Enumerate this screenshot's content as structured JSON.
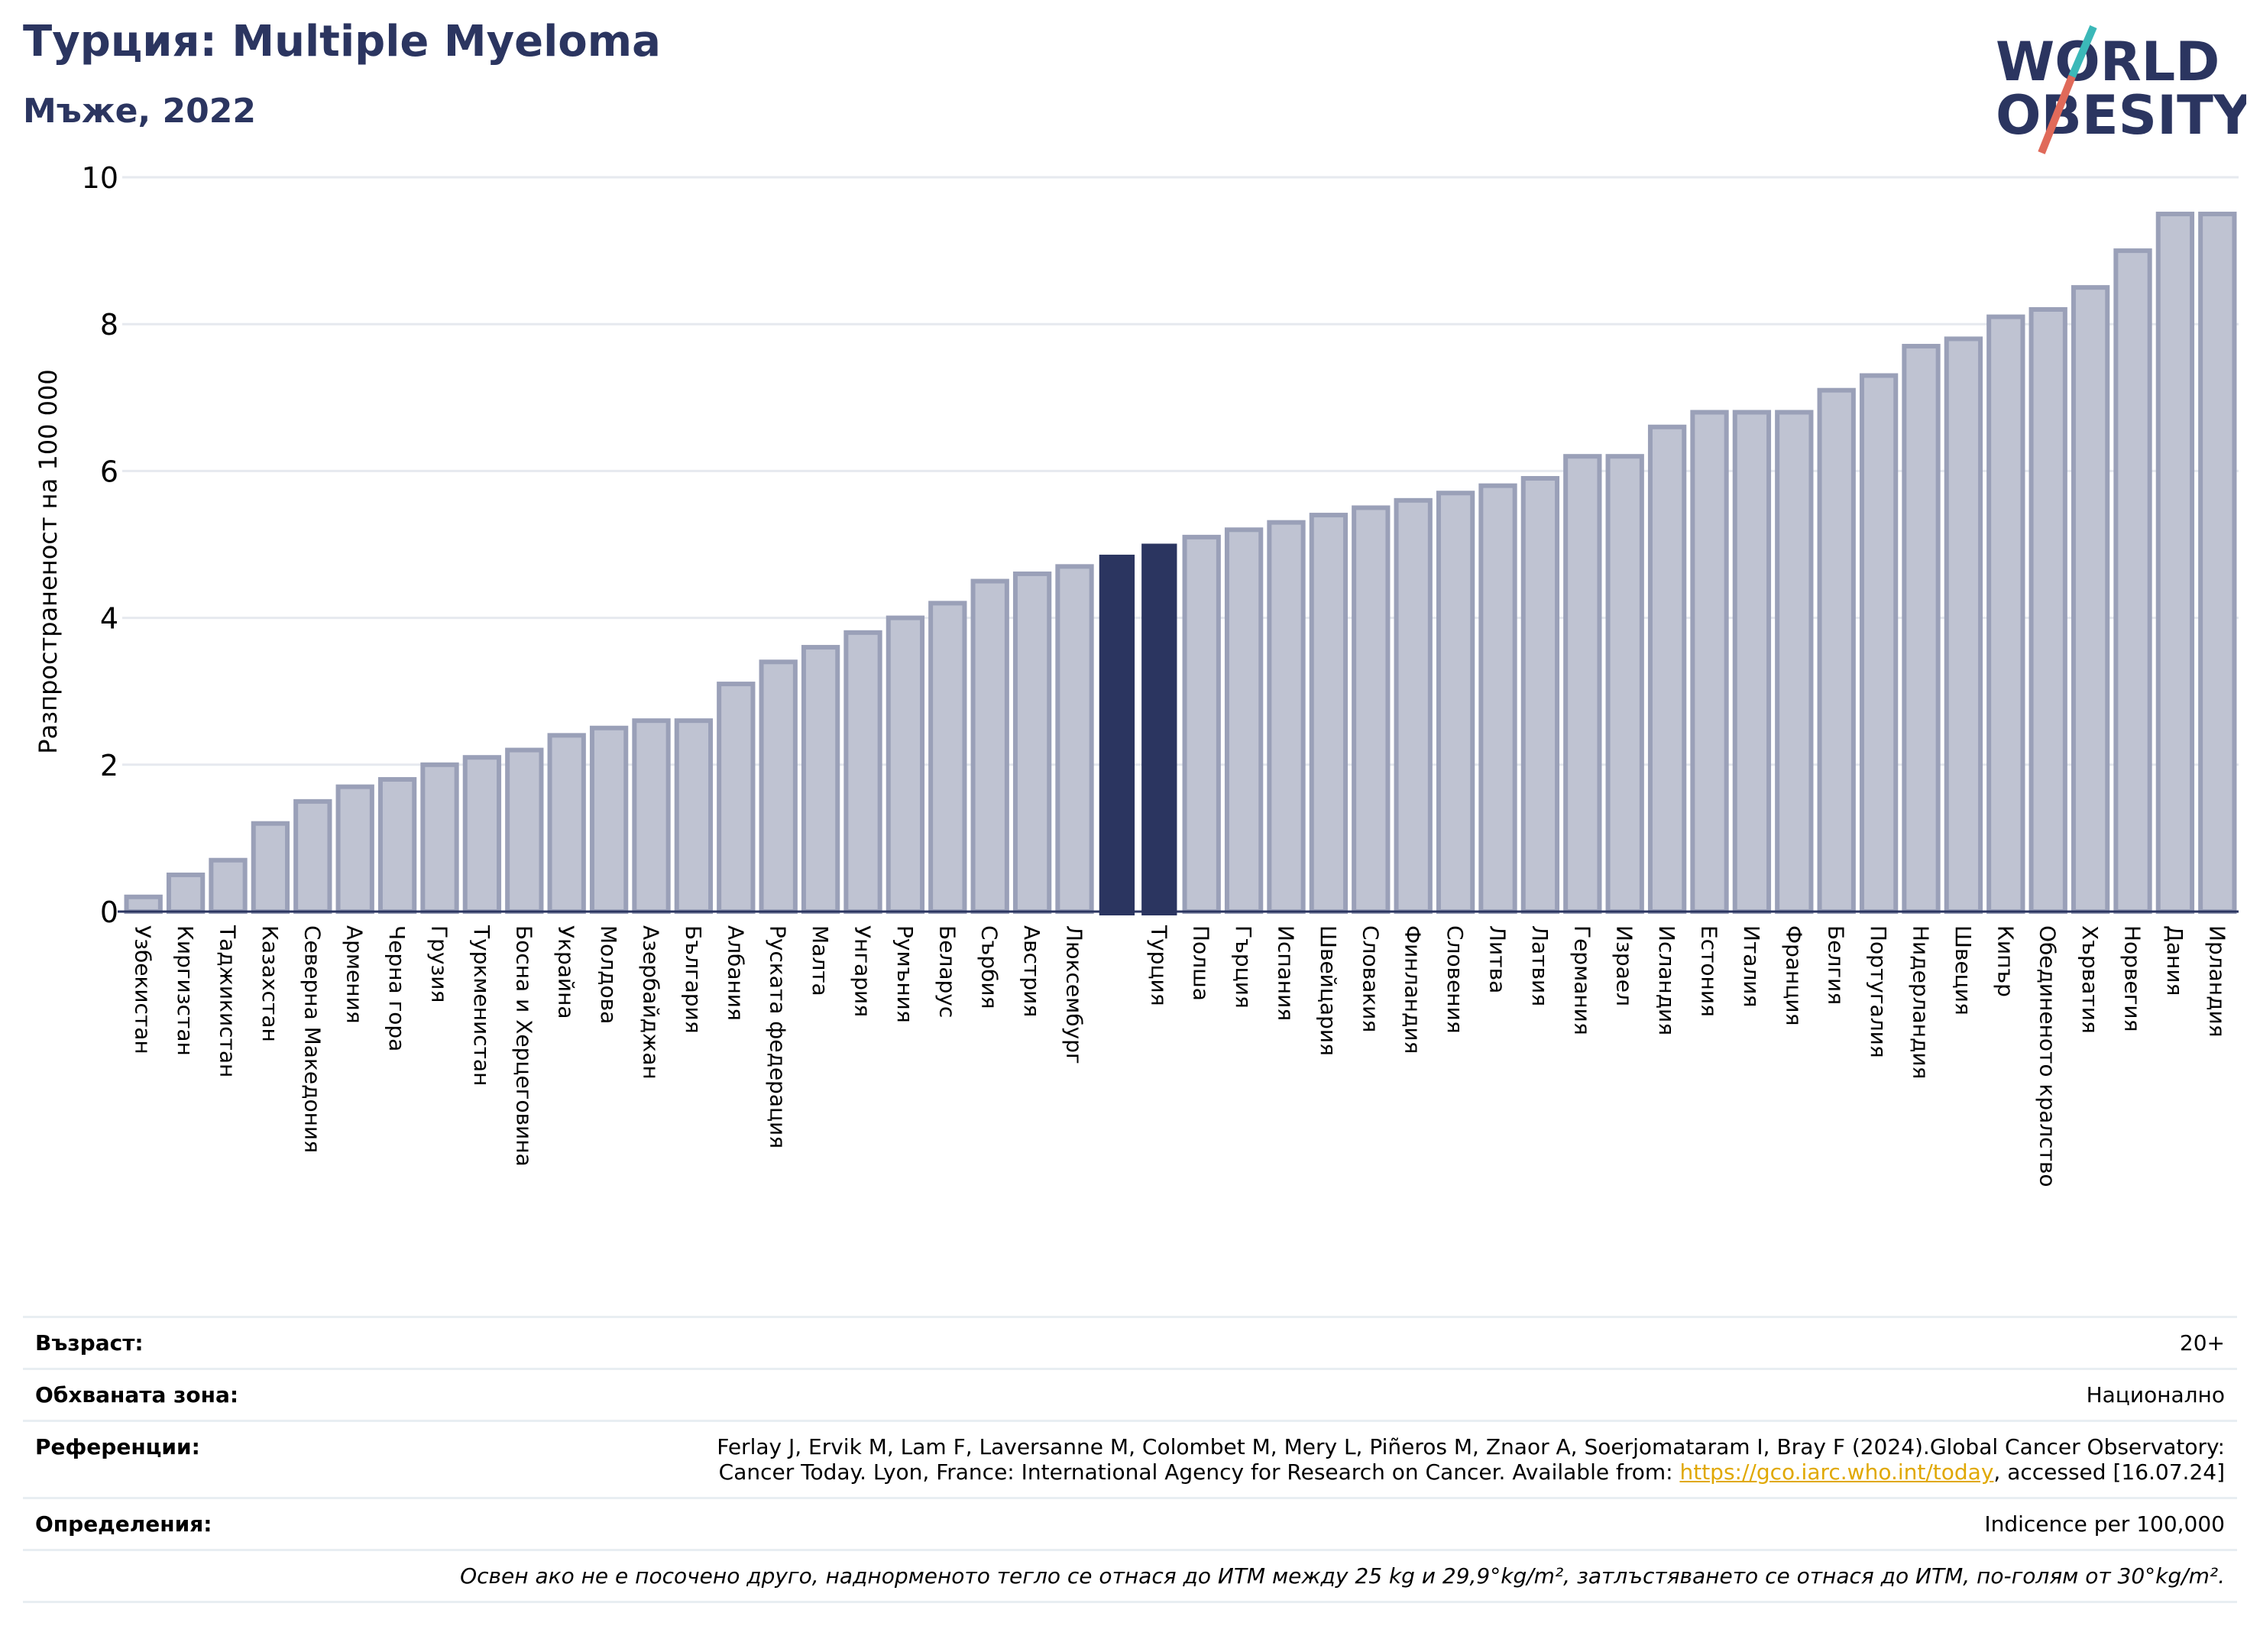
{
  "header": {
    "title": "Турция: Multiple Myeloma",
    "subtitle": "Мъже, 2022"
  },
  "logo": {
    "line1": "WORLD",
    "line2": "OBESITY"
  },
  "colors": {
    "highlight": "#2b3560",
    "bar": "#bfc3d2",
    "bar_border": "#9aa0b8",
    "title": "#2b3560",
    "link": "#e0a800"
  },
  "chart_data": {
    "type": "bar",
    "ylabel": "Разпространеност  на 100 000",
    "ylim": [
      0,
      10
    ],
    "yticks": [
      0,
      2,
      4,
      6,
      8,
      10
    ],
    "grid": true,
    "categories": [
      "Узбекистан",
      "Киргизстан",
      "Таджикистан",
      "Казахстан",
      "Северна Македония",
      "Армения",
      "Черна гора",
      "Грузия",
      "Туркменистан",
      "Босна и Херцеговина",
      "Украйна",
      "Молдова",
      "Азербайджан",
      "България",
      "Албания",
      "Руската федерация",
      "Малта",
      "Унгария",
      "Румъния",
      "Беларус",
      "Сърбия",
      "Австрия",
      "Люксембург",
      "",
      "Турция",
      "Полша",
      "Гърция",
      "Испания",
      "Швейцария",
      "Словакия",
      "Финландия",
      "Словения",
      "Литва",
      "Латвия",
      "Германия",
      "Израел",
      "Исландия",
      "Естония",
      "Италия",
      "Франция",
      "Белгия",
      "Португалия",
      "Нидерландия",
      "Швеция",
      "Кипър",
      "Обединеното кралство",
      "Хърватия",
      "Норвегия",
      "Дания",
      "Ирландия"
    ],
    "values": [
      0.2,
      0.5,
      0.7,
      1.2,
      1.5,
      1.7,
      1.8,
      2.0,
      2.1,
      2.2,
      2.4,
      2.5,
      2.6,
      2.6,
      3.1,
      3.4,
      3.6,
      3.8,
      4.0,
      4.2,
      4.5,
      4.6,
      4.7,
      4.85,
      5.0,
      5.1,
      5.2,
      5.3,
      5.4,
      5.5,
      5.6,
      5.7,
      5.8,
      5.9,
      6.2,
      6.2,
      6.6,
      6.8,
      6.8,
      6.8,
      7.1,
      7.3,
      7.7,
      7.8,
      8.1,
      8.2,
      8.5,
      9.0,
      9.5,
      9.5
    ],
    "highlighted": [
      23,
      24
    ]
  },
  "meta": {
    "age_label": "Възраст:",
    "age_value": "20+",
    "coverage_label": "Обхваната зона:",
    "coverage_value": "Национално",
    "refs_label": "Референции:",
    "refs_line1": "Ferlay J, Ervik M, Lam F, Laversanne M, Colombet M, Mery L, Piñeros M, Znaor A, Soerjomataram I, Bray F (2024).Global Cancer Observatory:",
    "refs_line2_pre": "Cancer Today. Lyon, France: International Agency for Research on Cancer. Available from: ",
    "refs_link": "https://gco.iarc.who.int/today",
    "refs_line2_post": ", accessed [16.07.24]",
    "defs_label": "Определения:",
    "defs_value": "Indicence per 100,000",
    "note": "Освен ако не е посочено друго, наднорменото тегло се отнася до ИТМ между 25 kg и 29,9°kg/m², затлъстяването се отнася до ИТМ, по-голям от 30°kg/m²."
  }
}
